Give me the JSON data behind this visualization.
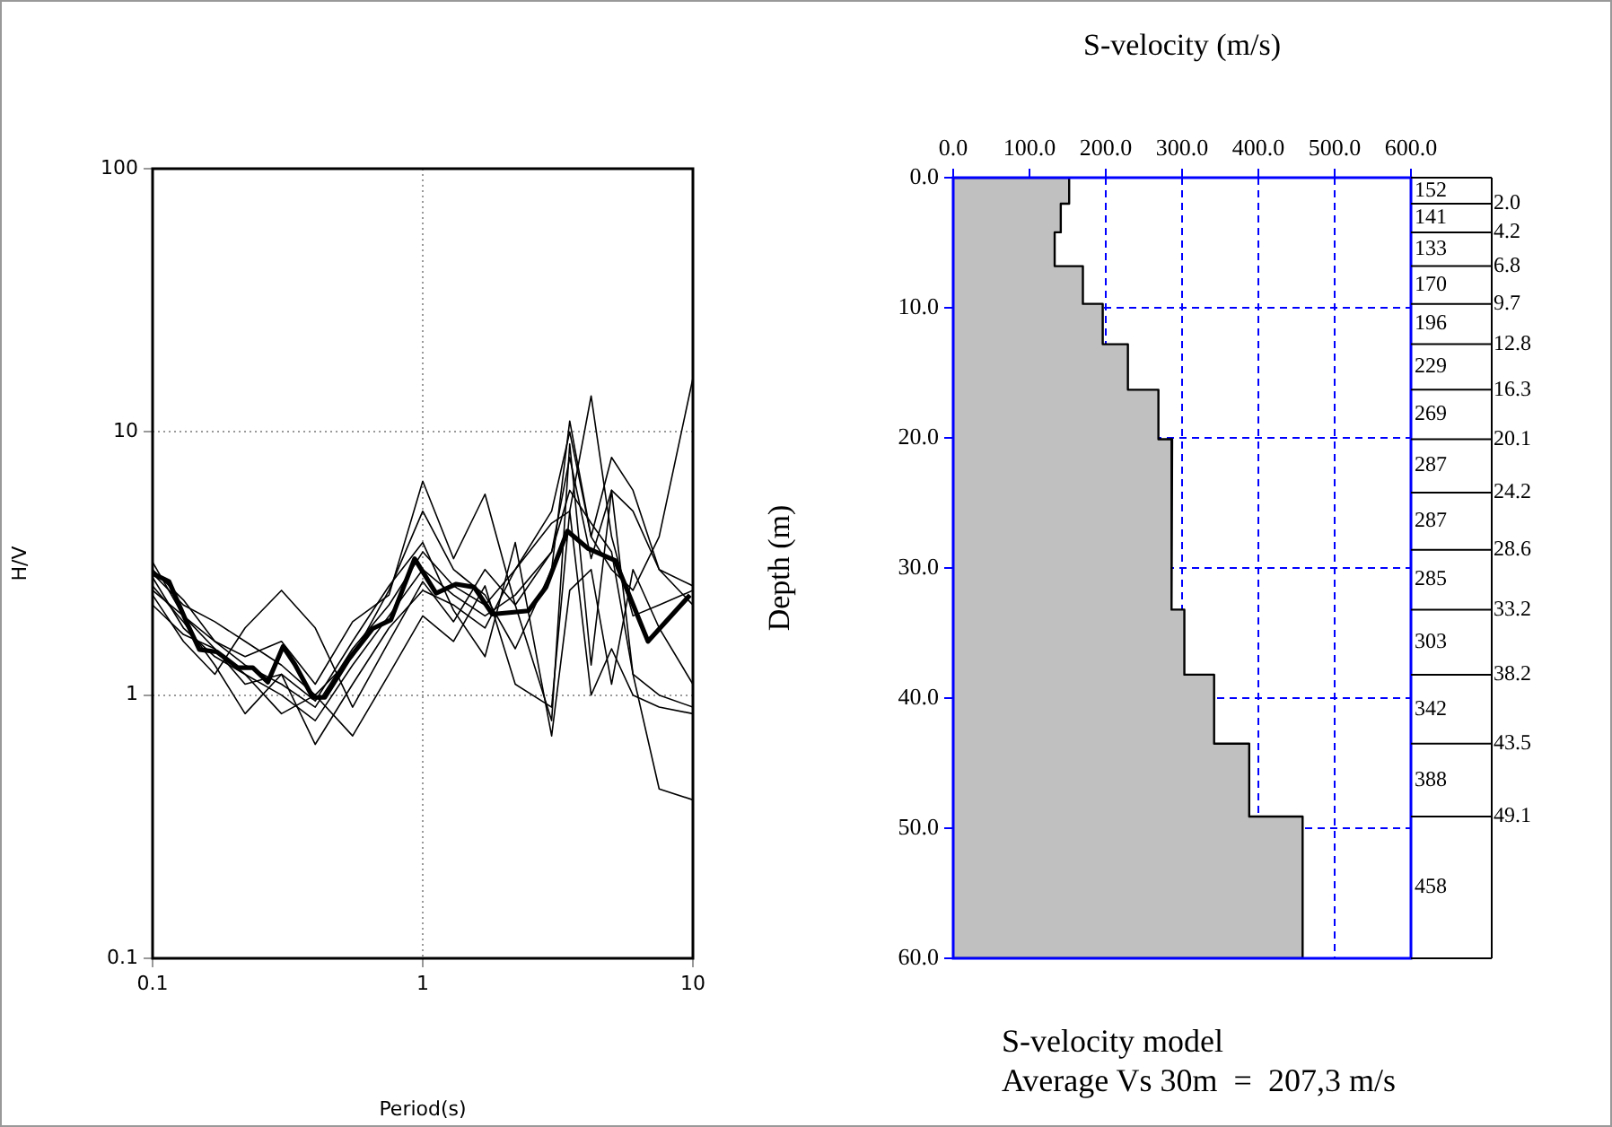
{
  "chart_data": [
    {
      "type": "line",
      "xlabel": "Period(s)",
      "ylabel": "H/V",
      "log": "xy",
      "xlim": [
        0.1,
        10
      ],
      "ylim": [
        0.1,
        100
      ],
      "xticks": [
        0.1,
        1,
        10
      ],
      "yticks": [
        0.1,
        1,
        10,
        100
      ],
      "grid": true,
      "legend": false,
      "x": [
        0.1,
        0.13,
        0.17,
        0.22,
        0.3,
        0.4,
        0.55,
        0.75,
        1,
        1.3,
        1.7,
        2.2,
        3,
        3.5,
        4.2,
        5,
        6,
        7.5,
        10
      ],
      "series": [
        {
          "color": "#000000",
          "x": [
            0.1,
            0.115,
            0.134,
            0.149,
            0.173,
            0.207,
            0.235,
            0.267,
            0.304,
            0.336,
            0.392,
            0.434,
            0.532,
            0.653,
            0.762,
            0.933,
            1.12,
            1.33,
            1.55,
            1.81,
            2.46,
            2.86,
            3.43,
            4.1,
            5.15,
            6.82,
            9.75
          ],
          "values": [
            2.9,
            2.7,
            1.88,
            1.49,
            1.46,
            1.27,
            1.27,
            1.12,
            1.53,
            1.31,
            0.98,
            0.98,
            1.37,
            1.79,
            1.93,
            3.3,
            2.44,
            2.64,
            2.57,
            2.03,
            2.09,
            2.57,
            4.2,
            3.6,
            3.25,
            1.6,
            2.4
          ]
        },
        {
          "color": "#000000",
          "values": [
            3.2,
            2.0,
            1.6,
            1.3,
            1.1,
            0.9,
            1.5,
            2.2,
            3.5,
            2.6,
            2.2,
            3.0,
            5,
            10,
            4,
            3,
            2.5,
            4,
            16
          ]
        },
        {
          "color": "#000000",
          "values": [
            2.8,
            1.8,
            1.4,
            1.2,
            1.0,
            0.8,
            1.3,
            2.0,
            3,
            2.4,
            2,
            2.4,
            3.5,
            6,
            4.5,
            3.5,
            1.2,
            0.44,
            0.4
          ]
        },
        {
          "color": "#000000",
          "values": [
            2.5,
            2.0,
            1.5,
            1.1,
            1.2,
            0.65,
            1.1,
            1.8,
            2.5,
            2.2,
            1.8,
            3,
            4.5,
            5,
            13.7,
            4,
            2,
            2.2,
            2.5
          ]
        },
        {
          "color": "#000000",
          "values": [
            2.9,
            2.2,
            1.9,
            1.6,
            1.3,
            1.0,
            1.4,
            2.5,
            5,
            3,
            2.4,
            1.5,
            3,
            11,
            4,
            8,
            6,
            3,
            2.6
          ]
        },
        {
          "color": "#000000",
          "values": [
            2.2,
            1.7,
            1.5,
            1.2,
            0.85,
            1.0,
            0.7,
            1.2,
            2,
            1.6,
            2.6,
            1.1,
            0.9,
            5,
            1.0,
            1.5,
            1.0,
            0.9,
            0.85
          ]
        },
        {
          "color": "#000000",
          "values": [
            3.0,
            2.3,
            1.6,
            1.4,
            1.6,
            1.1,
            1.9,
            2.4,
            6.5,
            3.3,
            5.8,
            2.2,
            3.5,
            8,
            3.3,
            6,
            5,
            3,
            2.2
          ]
        },
        {
          "color": "#000000",
          "values": [
            2.6,
            1.9,
            1.3,
            0.85,
            1.2,
            0.95,
            1.6,
            2.6,
            3.8,
            2.1,
            1.4,
            3.8,
            0.7,
            2.5,
            3,
            1.1,
            3,
            1.8,
            1.1
          ]
        },
        {
          "color": "#000000",
          "values": [
            2.4,
            1.6,
            1.2,
            1.8,
            2.5,
            1.8,
            0.9,
            1.6,
            2.7,
            1.9,
            3,
            2.2,
            0.8,
            9,
            1.3,
            6,
            1.2,
            1.0,
            0.9
          ]
        }
      ]
    },
    {
      "type": "area",
      "xlabel": "S-velocity (m/s)",
      "ylabel": "Depth (m)",
      "xlim": [
        0,
        600
      ],
      "ylim": [
        60,
        0
      ],
      "grid": true,
      "legend": false,
      "xticks": [
        {
          "value": 0,
          "label": "0.0"
        },
        {
          "value": 100,
          "label": "100.0"
        },
        {
          "value": 200,
          "label": "200.0"
        },
        {
          "value": 300,
          "label": "300.0"
        },
        {
          "value": 400,
          "label": "400.0"
        },
        {
          "value": 500,
          "label": "500.0"
        },
        {
          "value": 600,
          "label": "600.0"
        }
      ],
      "yticks": [
        {
          "value": 0,
          "label": "0.0"
        },
        {
          "value": 10,
          "label": "10.0"
        },
        {
          "value": 20,
          "label": "20.0"
        },
        {
          "value": 30,
          "label": "30.0"
        },
        {
          "value": 40,
          "label": "40.0"
        },
        {
          "value": 50,
          "label": "50.0"
        },
        {
          "value": 60,
          "label": "60.0"
        }
      ],
      "series": [
        {
          "color": "#c0c0c0",
          "x": [
            0,
            152,
            152,
            141,
            141,
            133,
            133,
            170,
            170,
            196,
            196,
            229,
            229,
            269,
            269,
            287,
            287,
            287,
            287,
            285,
            285,
            303,
            303,
            342,
            342,
            388,
            388,
            458,
            458,
            0
          ],
          "values": [
            0,
            0,
            2.0,
            2.0,
            4.2,
            4.2,
            6.8,
            6.8,
            9.7,
            9.7,
            12.8,
            12.8,
            16.3,
            16.3,
            20.1,
            20.1,
            24.2,
            24.2,
            28.6,
            28.6,
            33.2,
            33.2,
            38.2,
            38.2,
            43.5,
            43.5,
            49.1,
            49.1,
            60,
            60
          ]
        }
      ],
      "annotations": [
        "152",
        "141",
        "133",
        "170",
        "196",
        "229",
        "269",
        "287",
        "287",
        "285",
        "303",
        "342",
        "388",
        "458",
        "2.0",
        "4.2",
        "6.8",
        "9.7",
        "12.8",
        "16.3",
        "20.1",
        "24.2",
        "28.6",
        "33.2",
        "38.2",
        "43.5",
        "49.1",
        "S-velocity model",
        "Average Vs 30m  =  207,3 m/s"
      ]
    }
  ]
}
